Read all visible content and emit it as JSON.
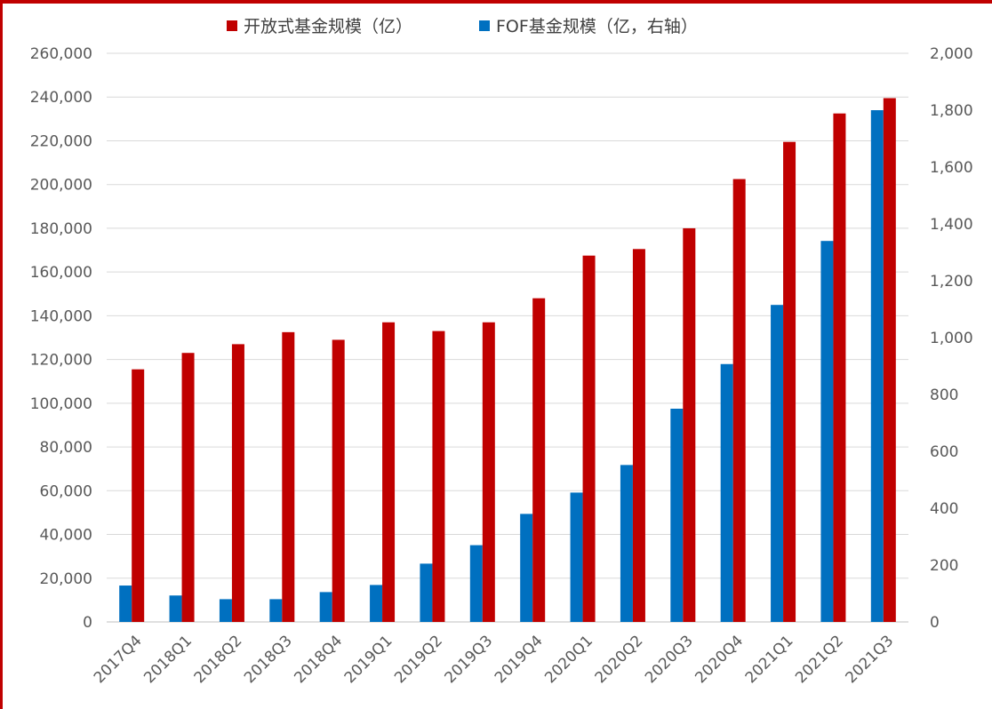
{
  "chart_data": {
    "type": "bar",
    "categories": [
      "2017Q4",
      "2018Q1",
      "2018Q2",
      "2018Q3",
      "2018Q4",
      "2019Q1",
      "2019Q2",
      "2019Q3",
      "2019Q4",
      "2020Q1",
      "2020Q2",
      "2020Q3",
      "2020Q4",
      "2021Q1",
      "2021Q2",
      "2021Q3"
    ],
    "series": [
      {
        "name": "开放式基金规模（亿）",
        "axis": "left",
        "color": "#c00000",
        "values": [
          115500,
          123000,
          127000,
          132500,
          129000,
          137000,
          133000,
          137000,
          148000,
          167500,
          170500,
          180000,
          202500,
          219500,
          232500,
          239500
        ]
      },
      {
        "name": "FOF基金规模（亿，右轴）",
        "axis": "right",
        "color": "#0070c0",
        "values": [
          128,
          93,
          80,
          80,
          105,
          130,
          205,
          270,
          380,
          455,
          552,
          750,
          907,
          1115,
          1340,
          1800
        ]
      }
    ],
    "y_left": {
      "min": 0,
      "max": 260000,
      "step": 20000,
      "tick_labels": [
        "0",
        "20,000",
        "40,000",
        "60,000",
        "80,000",
        "100,000",
        "120,000",
        "140,000",
        "160,000",
        "180,000",
        "200,000",
        "220,000",
        "240,000",
        "260,000"
      ]
    },
    "y_right": {
      "min": 0,
      "max": 2000,
      "step": 200,
      "tick_labels": [
        "0",
        "200",
        "400",
        "600",
        "800",
        "1,000",
        "1,200",
        "1,400",
        "1,600",
        "1,800",
        "2,000"
      ]
    },
    "grid": true,
    "legend_position": "top-center"
  }
}
